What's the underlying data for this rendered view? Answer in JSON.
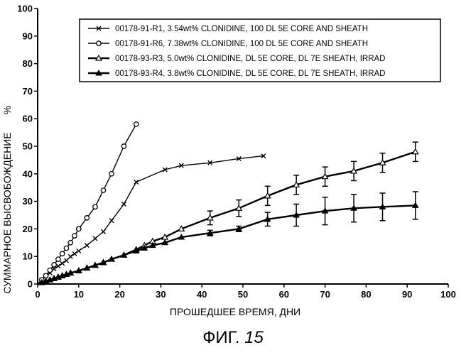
{
  "caption": {
    "prefix": "ФИГ.",
    "number": "15"
  },
  "chart_data": {
    "type": "line",
    "xlabel": "ПРОШЕДШЕЕ ВРЕМЯ, ДНИ",
    "ylabel": "СУММАРНОЕ ВЫСВОБОЖДЕНИЕ",
    "ylabel_unit": "%",
    "xlim": [
      0,
      100
    ],
    "ylim": [
      0,
      100
    ],
    "xticks": [
      0,
      10,
      20,
      30,
      40,
      50,
      60,
      70,
      80,
      90,
      100
    ],
    "yticks": [
      0,
      10,
      20,
      30,
      40,
      50,
      60,
      70,
      80,
      90,
      100
    ],
    "grid": false,
    "legend_position": "top-right",
    "series": [
      {
        "name": "00178-91-R1, 3.54wt% CLONIDINE, 100 DL 5E CORE AND SHEATH",
        "marker": "x",
        "x": [
          0,
          1,
          2,
          3,
          4,
          5,
          6,
          7,
          8,
          9,
          10,
          12,
          14,
          16,
          18,
          21,
          24,
          31,
          35,
          42,
          49,
          55
        ],
        "y": [
          0,
          1.5,
          3,
          4,
          5.5,
          6.5,
          7.5,
          8.5,
          10,
          11,
          12,
          14,
          16.5,
          19,
          23,
          29,
          37,
          41.5,
          43,
          44,
          45.5,
          46.5
        ]
      },
      {
        "name": "00178-91-R6, 7.38wt% CLONIDINE, 100 DL 5E CORE AND SHEATH",
        "marker": "circle",
        "x": [
          0,
          1,
          2,
          3,
          4,
          5,
          6,
          7,
          8,
          9,
          10,
          12,
          14,
          16,
          18,
          21,
          24
        ],
        "y": [
          0,
          1.5,
          3,
          5,
          7,
          9,
          11,
          13,
          15,
          17.5,
          20,
          24,
          28,
          34,
          40,
          50,
          58
        ]
      },
      {
        "name": "00178-93-R3, 5.0wt% CLONIDINE, DL 5E CORE, DL 7E SHEATH, IRRAD",
        "marker": "triangle-open",
        "x": [
          0,
          1,
          2,
          3,
          4,
          5,
          6,
          7,
          8,
          10,
          12,
          14,
          16,
          18,
          21,
          24,
          26,
          28,
          31,
          35,
          42,
          49,
          56,
          63,
          70,
          77,
          84,
          92
        ],
        "y": [
          0,
          0.5,
          1,
          1.5,
          2,
          2.5,
          3,
          3.5,
          4,
          4.8,
          5.8,
          6.8,
          7.8,
          9,
          10.5,
          12.5,
          14,
          15.5,
          17,
          20,
          24,
          27.5,
          32,
          36,
          39,
          41,
          44,
          48
        ],
        "error": [
          0,
          0,
          0,
          0,
          0,
          0,
          0,
          0,
          0,
          0,
          0,
          0,
          0,
          0,
          0,
          0,
          0,
          0,
          0,
          0,
          2.5,
          3,
          3.5,
          3.5,
          3.5,
          3.5,
          3.5,
          3.5
        ]
      },
      {
        "name": "00178-93-R4, 3.8wt% CLONIDINE, DL 5E CORE, DL 7E SHEATH, IRRAD",
        "marker": "triangle-filled",
        "x": [
          0,
          1,
          2,
          3,
          4,
          5,
          6,
          7,
          8,
          10,
          12,
          14,
          16,
          18,
          21,
          24,
          26,
          28,
          31,
          35,
          42,
          49,
          56,
          63,
          70,
          77,
          84,
          92
        ],
        "y": [
          0,
          0.5,
          1,
          1.5,
          2,
          2.5,
          3,
          3.5,
          4,
          4.8,
          5.8,
          6.8,
          7.8,
          9,
          10.5,
          12,
          13,
          14,
          15,
          17,
          18.5,
          20,
          23.5,
          25,
          26.5,
          27.5,
          28,
          28.5
        ],
        "error": [
          0,
          0,
          0,
          0,
          0,
          0,
          0,
          0,
          0,
          0,
          0,
          0,
          0,
          0,
          0,
          0,
          0,
          0,
          0,
          0,
          1,
          1,
          2.5,
          4,
          5,
          5,
          5,
          5
        ]
      }
    ]
  }
}
